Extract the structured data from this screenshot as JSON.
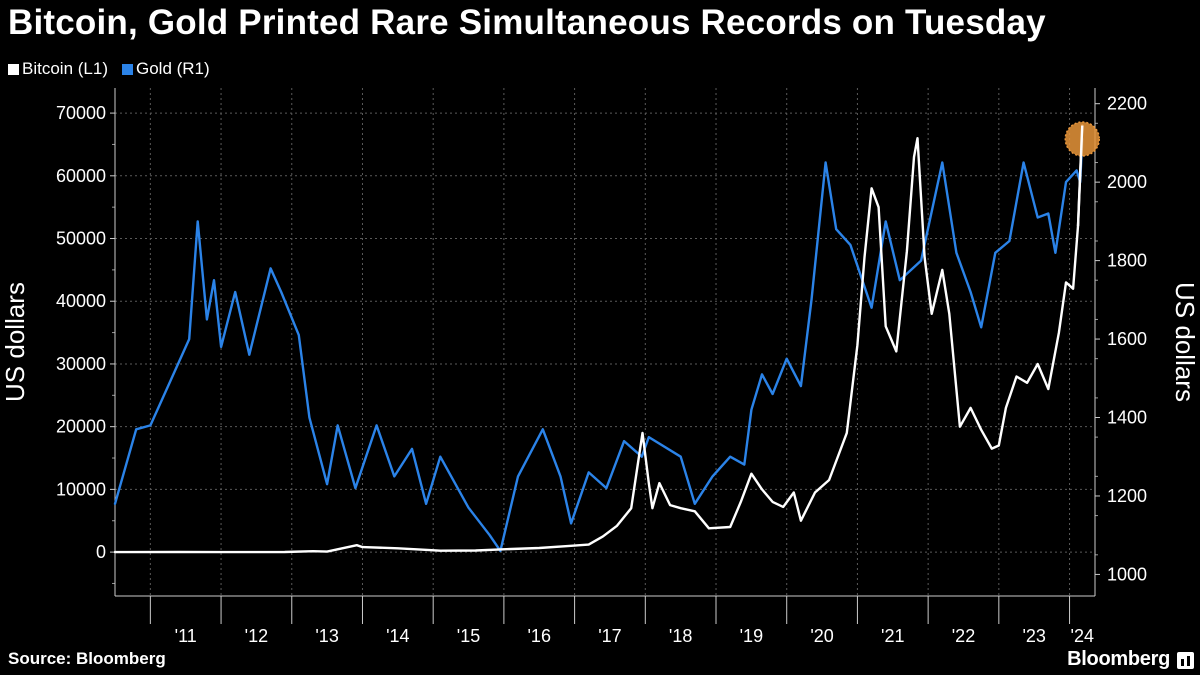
{
  "header": {
    "title": "Bitcoin, Gold Printed Rare Simultaneous Records on Tuesday"
  },
  "footer": {
    "source": "Source: Bloomberg",
    "brand": "Bloomberg"
  },
  "chart_data": {
    "type": "line",
    "title": "Bitcoin, Gold Printed Rare Simultaneous Records on Tuesday",
    "legend_position": "top-left",
    "grid": true,
    "x_axis": {
      "range": [
        2010.5,
        2024.36
      ],
      "tick_labels": [
        "'11",
        "'12",
        "'13",
        "'14",
        "'15",
        "'16",
        "'17",
        "'18",
        "'19",
        "'20",
        "'21",
        "'22",
        "'23",
        "'24"
      ]
    },
    "y_left": {
      "label": "US dollars",
      "range": [
        -7000,
        74000
      ],
      "ticks": [
        0,
        10000,
        20000,
        30000,
        40000,
        50000,
        60000,
        70000
      ],
      "tick_labels": [
        "0",
        "10000",
        "20000",
        "30000",
        "40000",
        "50000",
        "60000",
        "70000"
      ]
    },
    "y_right": {
      "label": "US dollars",
      "range": [
        945,
        2240
      ],
      "ticks": [
        1000,
        1200,
        1400,
        1600,
        1800,
        2000,
        2200
      ],
      "tick_labels": [
        "1000",
        "1200",
        "1400",
        "1600",
        "1800",
        "2000",
        "2200"
      ]
    },
    "series": [
      {
        "name": "Bitcoin (L1)",
        "axis": "left",
        "color": "#ffffff",
        "points": [
          [
            2010.5,
            0
          ],
          [
            2011.4,
            20
          ],
          [
            2012.0,
            5
          ],
          [
            2012.9,
            13
          ],
          [
            2013.3,
            150
          ],
          [
            2013.5,
            80
          ],
          [
            2013.92,
            1100
          ],
          [
            2014.0,
            800
          ],
          [
            2014.5,
            600
          ],
          [
            2014.95,
            320
          ],
          [
            2015.1,
            220
          ],
          [
            2015.6,
            260
          ],
          [
            2015.95,
            430
          ],
          [
            2016.5,
            650
          ],
          [
            2016.9,
            950
          ],
          [
            2017.2,
            1200
          ],
          [
            2017.4,
            2500
          ],
          [
            2017.6,
            4200
          ],
          [
            2017.8,
            7000
          ],
          [
            2017.96,
            19000
          ],
          [
            2018.05,
            11000
          ],
          [
            2018.1,
            7000
          ],
          [
            2018.2,
            11000
          ],
          [
            2018.35,
            7500
          ],
          [
            2018.5,
            7000
          ],
          [
            2018.7,
            6500
          ],
          [
            2018.9,
            3800
          ],
          [
            2019.2,
            4000
          ],
          [
            2019.35,
            8000
          ],
          [
            2019.5,
            12500
          ],
          [
            2019.65,
            10000
          ],
          [
            2019.8,
            8000
          ],
          [
            2019.95,
            7200
          ],
          [
            2020.1,
            9500
          ],
          [
            2020.2,
            5000
          ],
          [
            2020.4,
            9500
          ],
          [
            2020.6,
            11500
          ],
          [
            2020.85,
            19000
          ],
          [
            2021.0,
            33000
          ],
          [
            2021.1,
            47000
          ],
          [
            2021.2,
            58000
          ],
          [
            2021.3,
            55000
          ],
          [
            2021.4,
            36000
          ],
          [
            2021.55,
            32000
          ],
          [
            2021.7,
            48000
          ],
          [
            2021.8,
            63000
          ],
          [
            2021.85,
            66000
          ],
          [
            2021.95,
            47000
          ],
          [
            2022.05,
            38000
          ],
          [
            2022.2,
            45000
          ],
          [
            2022.3,
            38000
          ],
          [
            2022.45,
            20000
          ],
          [
            2022.6,
            23000
          ],
          [
            2022.75,
            19500
          ],
          [
            2022.9,
            16500
          ],
          [
            2023.0,
            17000
          ],
          [
            2023.1,
            23000
          ],
          [
            2023.25,
            28000
          ],
          [
            2023.4,
            27000
          ],
          [
            2023.55,
            30000
          ],
          [
            2023.7,
            26000
          ],
          [
            2023.85,
            35000
          ],
          [
            2023.95,
            43000
          ],
          [
            2024.05,
            42000
          ],
          [
            2024.12,
            52000
          ],
          [
            2024.17,
            66000
          ],
          [
            2024.18,
            68000
          ]
        ]
      },
      {
        "name": "Gold (R1)",
        "axis": "right",
        "color": "#2b83e8",
        "points": [
          [
            2010.5,
            1180
          ],
          [
            2010.8,
            1370
          ],
          [
            2011.0,
            1380
          ],
          [
            2011.3,
            1500
          ],
          [
            2011.55,
            1600
          ],
          [
            2011.67,
            1900
          ],
          [
            2011.8,
            1650
          ],
          [
            2011.9,
            1750
          ],
          [
            2012.0,
            1580
          ],
          [
            2012.2,
            1720
          ],
          [
            2012.4,
            1560
          ],
          [
            2012.7,
            1780
          ],
          [
            2012.85,
            1720
          ],
          [
            2013.1,
            1610
          ],
          [
            2013.25,
            1400
          ],
          [
            2013.5,
            1230
          ],
          [
            2013.65,
            1380
          ],
          [
            2013.9,
            1220
          ],
          [
            2014.2,
            1380
          ],
          [
            2014.45,
            1250
          ],
          [
            2014.7,
            1320
          ],
          [
            2014.9,
            1180
          ],
          [
            2015.1,
            1300
          ],
          [
            2015.5,
            1170
          ],
          [
            2015.8,
            1100
          ],
          [
            2015.95,
            1060
          ],
          [
            2016.2,
            1250
          ],
          [
            2016.55,
            1370
          ],
          [
            2016.8,
            1250
          ],
          [
            2016.95,
            1130
          ],
          [
            2017.2,
            1260
          ],
          [
            2017.45,
            1220
          ],
          [
            2017.7,
            1340
          ],
          [
            2017.95,
            1300
          ],
          [
            2018.05,
            1350
          ],
          [
            2018.5,
            1300
          ],
          [
            2018.7,
            1180
          ],
          [
            2018.95,
            1250
          ],
          [
            2019.2,
            1300
          ],
          [
            2019.4,
            1280
          ],
          [
            2019.5,
            1420
          ],
          [
            2019.65,
            1510
          ],
          [
            2019.8,
            1460
          ],
          [
            2020.0,
            1550
          ],
          [
            2020.2,
            1480
          ],
          [
            2020.35,
            1700
          ],
          [
            2020.55,
            2050
          ],
          [
            2020.7,
            1880
          ],
          [
            2020.9,
            1840
          ],
          [
            2021.2,
            1680
          ],
          [
            2021.4,
            1900
          ],
          [
            2021.6,
            1750
          ],
          [
            2021.9,
            1800
          ],
          [
            2022.2,
            2050
          ],
          [
            2022.4,
            1820
          ],
          [
            2022.6,
            1720
          ],
          [
            2022.75,
            1630
          ],
          [
            2022.95,
            1820
          ],
          [
            2023.15,
            1850
          ],
          [
            2023.35,
            2050
          ],
          [
            2023.55,
            1910
          ],
          [
            2023.7,
            1920
          ],
          [
            2023.8,
            1820
          ],
          [
            2023.95,
            2000
          ],
          [
            2024.1,
            2030
          ],
          [
            2024.15,
            2000
          ],
          [
            2024.18,
            2110
          ]
        ]
      }
    ],
    "annotations": [
      {
        "type": "highlight-circle",
        "x": 2024.18,
        "y": 2110,
        "axis": "right",
        "color": "#e8953a"
      }
    ]
  }
}
